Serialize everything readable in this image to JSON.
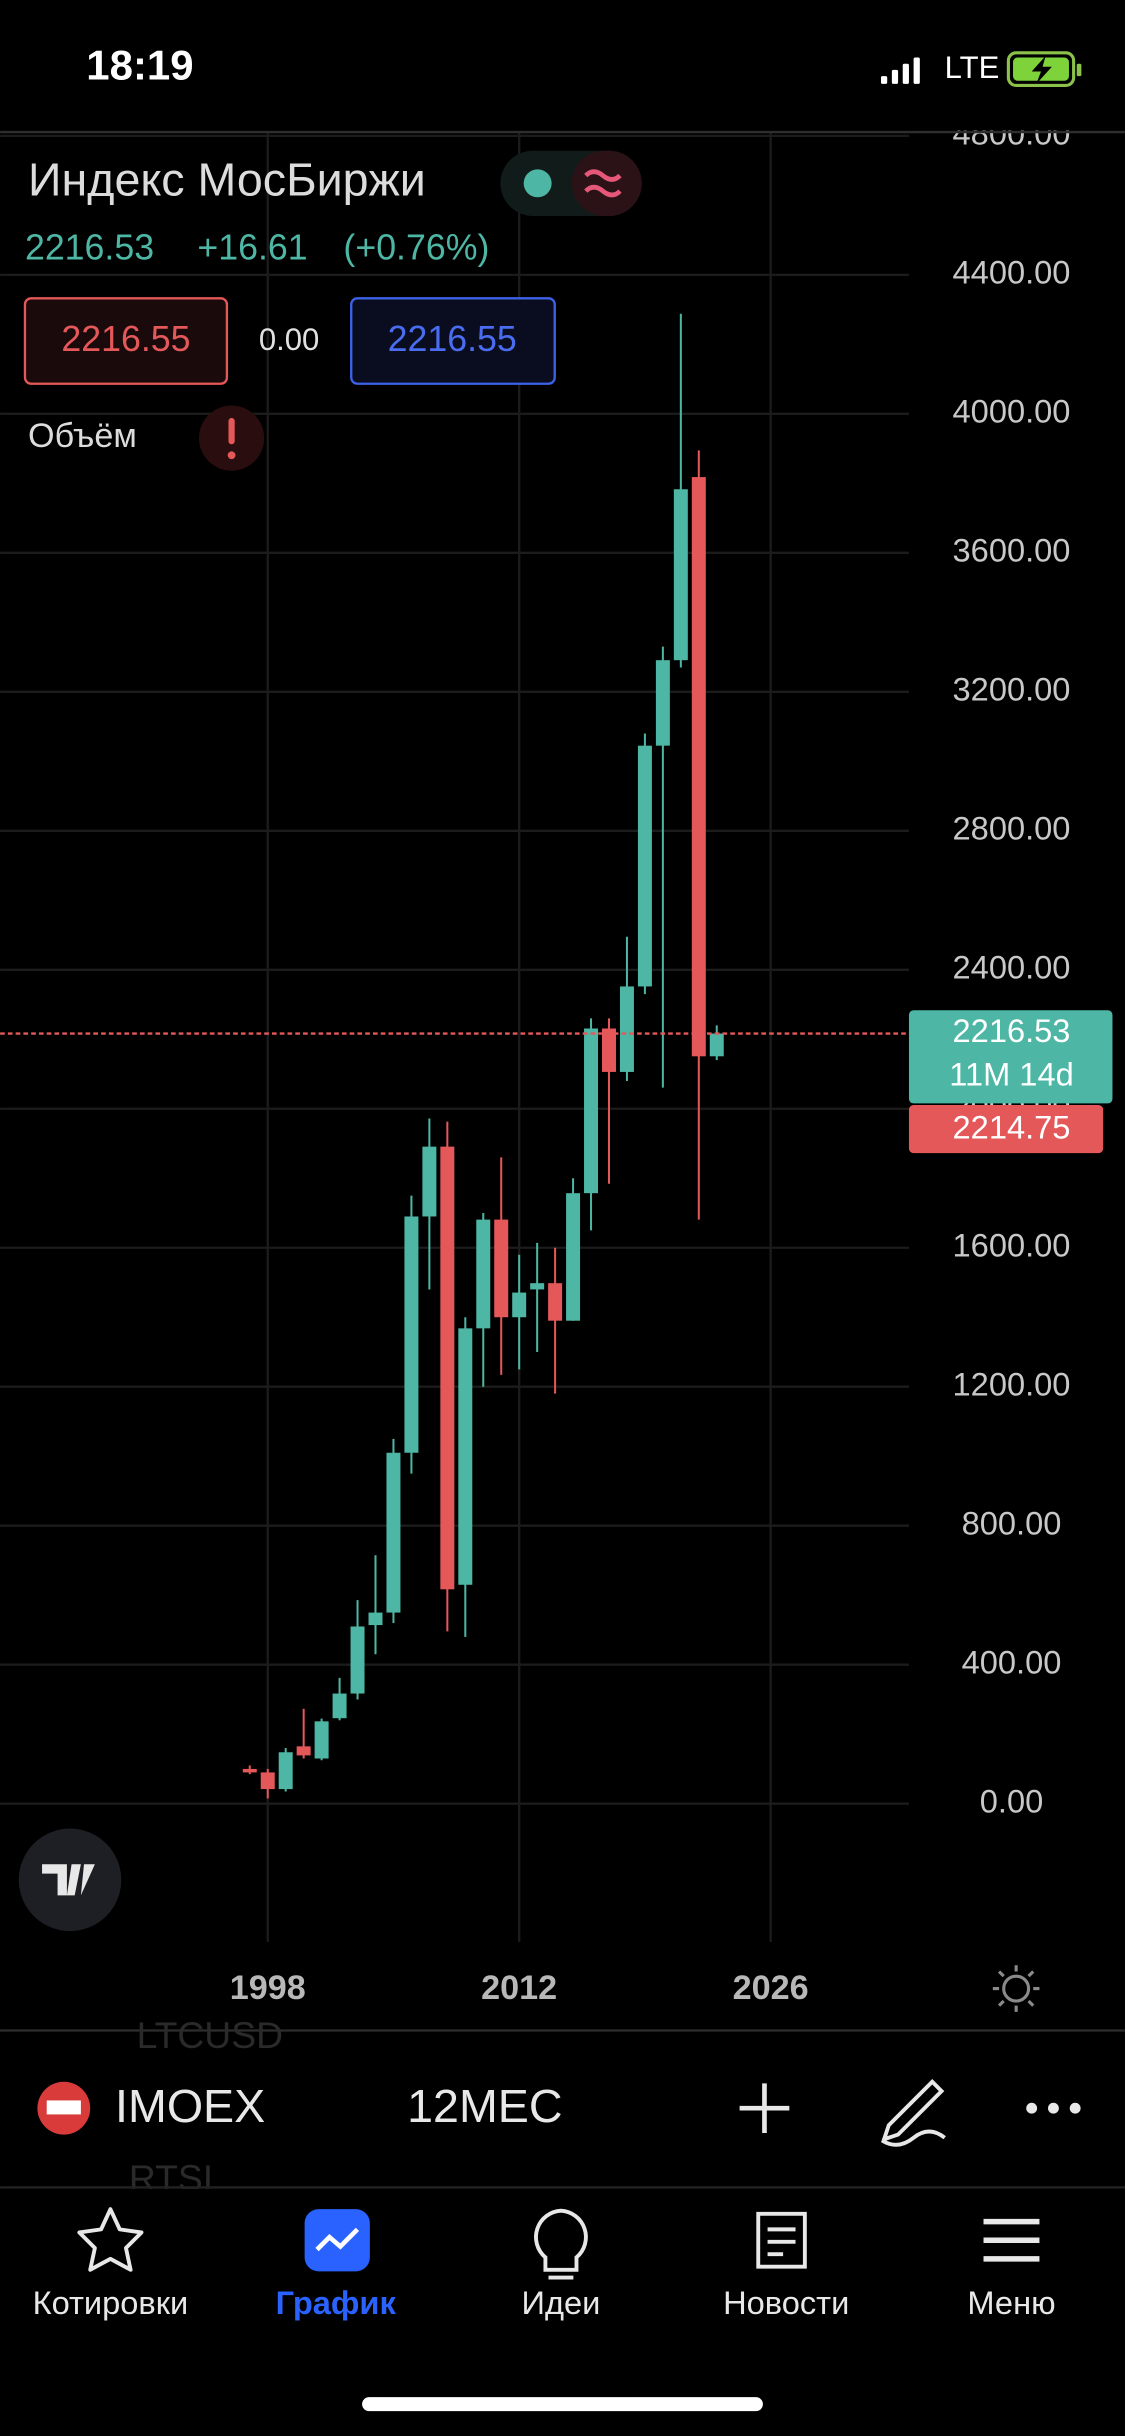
{
  "status_bar": {
    "time": "18:19",
    "network": "LTE"
  },
  "header": {
    "title": "Индекс МосБиржи",
    "price": "2216.53",
    "change": "+16.61",
    "change_percent": "(+0.76%)",
    "sell": "2216.55",
    "spread": "0.00",
    "buy": "2216.55",
    "volume_label": "Объём"
  },
  "chart_data": {
    "type": "candlestick",
    "x": [
      1997,
      1998,
      1999,
      2000,
      2001,
      2002,
      2003,
      2004,
      2005,
      2006,
      2007,
      2008,
      2009,
      2010,
      2011,
      2012,
      2013,
      2014,
      2015,
      2016,
      2017,
      2018,
      2019,
      2020,
      2021,
      2022,
      2023
    ],
    "open": [
      100,
      90,
      42,
      165,
      130,
      246,
      317,
      514,
      550,
      1010,
      1690,
      1891,
      630,
      1368,
      1681,
      1400,
      1480,
      1498,
      1390,
      1757,
      2231,
      2106,
      2352,
      3045,
      3291,
      3818,
      2151
    ],
    "high": [
      110,
      100,
      160,
      273,
      245,
      362,
      586,
      715,
      1050,
      1750,
      1972,
      1963,
      1400,
      1700,
      1860,
      1580,
      1614,
      1600,
      1800,
      2260,
      2260,
      2495,
      3080,
      3330,
      4288,
      3895,
      2240
    ],
    "low": [
      85,
      15,
      35,
      130,
      125,
      240,
      300,
      430,
      520,
      950,
      1480,
      496,
      480,
      1200,
      1234,
      1250,
      1300,
      1180,
      1390,
      1650,
      1784,
      2080,
      2330,
      2061,
      3270,
      1681,
      2140
    ],
    "close": [
      90,
      42,
      148,
      139,
      237,
      317,
      510,
      550,
      1010,
      1690,
      1891,
      617,
      1368,
      1681,
      1400,
      1471,
      1498,
      1390,
      1757,
      2231,
      2106,
      2352,
      3045,
      3291,
      3783,
      2151,
      2216.53
    ],
    "up_color": "#4db6a4",
    "down_color": "#e5585a",
    "xlim": [
      1983.1,
      2033.7
    ],
    "xticks": [
      1998,
      2012,
      2026
    ],
    "ylim": [
      -398,
      4811
    ],
    "yticks": [
      {
        "value": 0,
        "label": "0.00"
      },
      {
        "value": 400,
        "label": "400.00"
      },
      {
        "value": 800,
        "label": "800.00"
      },
      {
        "value": 1200,
        "label": "1200.00"
      },
      {
        "value": 1600,
        "label": "1600.00"
      },
      {
        "value": 2000,
        "label": "2000.00"
      },
      {
        "value": 2400,
        "label": "2400.00"
      },
      {
        "value": 2800,
        "label": "2800.00"
      },
      {
        "value": 3200,
        "label": "3200.00"
      },
      {
        "value": 3600,
        "label": "3600.00"
      },
      {
        "value": 4000,
        "label": "4000.00"
      },
      {
        "value": 4400,
        "label": "4400.00"
      },
      {
        "value": 4800,
        "label": "4800.00"
      }
    ],
    "grid": true,
    "countdown": "11M 14d",
    "price_marker": 2214.75
  },
  "toolbar": {
    "symbol": "IMOEX",
    "interval": "12МЕС",
    "list_above": "LTCUSD",
    "list_below": "RTSI"
  },
  "tabs": [
    "Котировки",
    "График",
    "Идеи",
    "Новости",
    "Меню"
  ]
}
